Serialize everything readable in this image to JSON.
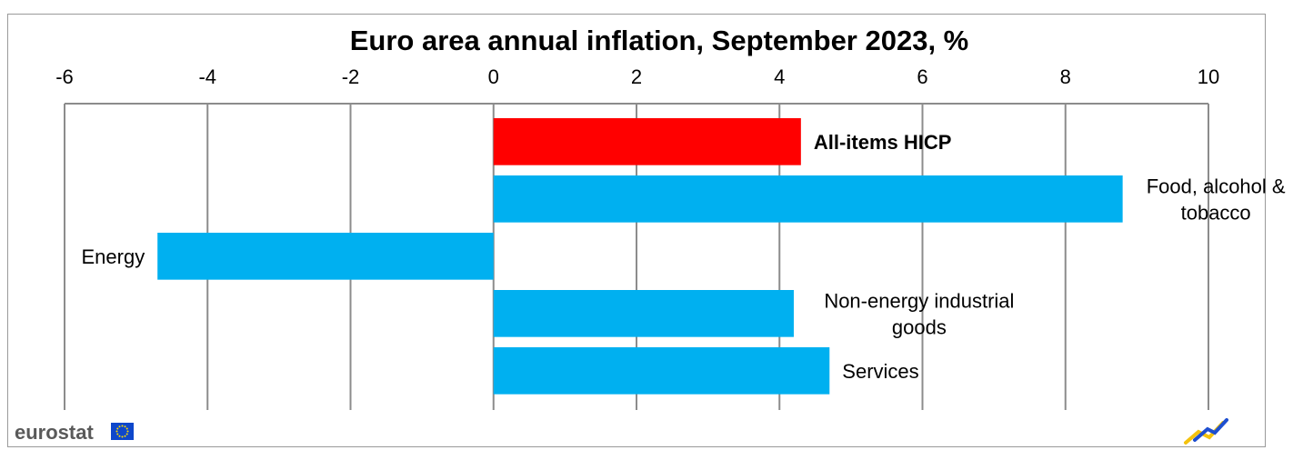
{
  "chart_data": {
    "type": "bar",
    "orientation": "horizontal",
    "title": "Euro area annual inflation, September 2023, %",
    "xlim": [
      -6,
      10
    ],
    "xticks": [
      -6,
      -4,
      -2,
      0,
      2,
      4,
      6,
      8,
      10
    ],
    "grid": true,
    "categories": [
      {
        "lines": [
          "All-items HICP"
        ],
        "bold": true
      },
      {
        "lines": [
          "Food, alcohol &",
          "tobacco"
        ],
        "bold": false
      },
      {
        "lines": [
          "Energy"
        ],
        "bold": false
      },
      {
        "lines": [
          "Non-energy industrial",
          "goods"
        ],
        "bold": false
      },
      {
        "lines": [
          "Services"
        ],
        "bold": false
      }
    ],
    "values": [
      4.3,
      8.8,
      -4.7,
      4.2,
      4.7
    ],
    "colors": [
      "#ff0000",
      "#00b0f0",
      "#00b0f0",
      "#00b0f0",
      "#00b0f0"
    ]
  },
  "branding": {
    "logo_text": "eurostat",
    "flag_color": "#0e47cb",
    "flag_star_color": "#ffdd00",
    "corner_icon": "eurostat-chart-mark-icon"
  }
}
